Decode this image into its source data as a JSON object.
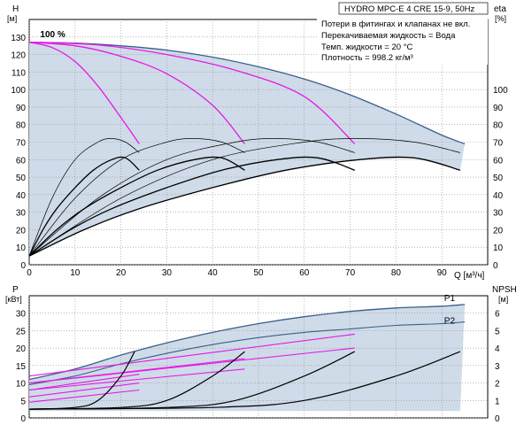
{
  "header": {
    "title": "HYDRO MPC-E 4 CRE 15-9, 50Hz"
  },
  "info_lines": [
    "Потери в фитингах и клапанах не вкл.",
    "Перекачиваемая жидкость = Вода",
    "Темп. жидкости = 20 °C",
    "Плотность = 998.2 кг/м³"
  ],
  "colors": {
    "envelope": "#3a5f8a",
    "curve": "#000000",
    "magenta": "#e619e6",
    "shade": "#cfdbe8",
    "grid": "#8f8f8f"
  },
  "chart_data": [
    {
      "type": "line",
      "name": "head",
      "ylabel_top": "H",
      "ylabel_unit": "[м]",
      "ylabel_right_top": "eta",
      "ylabel_right_unit": "[%]",
      "xlabel": "Q [м³/ч]",
      "xlim": [
        0,
        100
      ],
      "ylim": [
        0,
        140
      ],
      "eta_lim": [
        0,
        140
      ],
      "x_ticks": [
        "0",
        "10",
        "20",
        "30",
        "40",
        "50",
        "60",
        "70",
        "80",
        "90"
      ],
      "y_ticks": [
        "0",
        "10",
        "20",
        "30",
        "40",
        "50",
        "60",
        "70",
        "80",
        "90",
        "100",
        "110",
        "120",
        "130"
      ],
      "eta_ticks": [
        "0",
        "10",
        "20",
        "30",
        "40",
        "50",
        "60",
        "70",
        "80",
        "90",
        "100"
      ],
      "annotation": "100 %",
      "envelope": {
        "x": [
          0,
          10,
          20,
          30,
          40,
          50,
          60,
          70,
          80,
          90,
          95
        ],
        "y": [
          127,
          126.5,
          125,
          122.5,
          118.5,
          113,
          106,
          97,
          86,
          74,
          69
        ]
      },
      "speed_curves": [
        {
          "x": [
            0,
            5,
            10,
            15,
            20,
            24
          ],
          "y": [
            127,
            124,
            116,
            102,
            84,
            69
          ]
        },
        {
          "x": [
            0,
            10,
            20,
            30,
            40,
            47
          ],
          "y": [
            127,
            125,
            119,
            109,
            91,
            69
          ]
        },
        {
          "x": [
            0,
            15,
            30,
            45,
            60,
            71
          ],
          "y": [
            127,
            125.5,
            120,
            111,
            96,
            69
          ]
        }
      ],
      "eta_curves": [
        {
          "x": [
            0,
            5,
            10,
            15,
            18,
            21,
            24
          ],
          "y": [
            5,
            38,
            60,
            70,
            72,
            70,
            64
          ]
        },
        {
          "x": [
            0,
            10,
            20,
            30,
            36,
            42,
            47
          ],
          "y": [
            5,
            38,
            60,
            70,
            72,
            70,
            64
          ]
        },
        {
          "x": [
            0,
            15,
            30,
            45,
            54,
            63,
            71
          ],
          "y": [
            5,
            38,
            60,
            70,
            72,
            70,
            64
          ]
        },
        {
          "x": [
            0,
            20,
            40,
            60,
            72,
            84,
            94
          ],
          "y": [
            5,
            38,
            60,
            70,
            72,
            70,
            64
          ]
        }
      ],
      "system_curves": [
        {
          "x": [
            0,
            3,
            6,
            10,
            14,
            18,
            21,
            24
          ],
          "y": [
            5,
            20,
            32,
            44,
            54,
            60,
            61,
            54
          ]
        },
        {
          "x": [
            0,
            6,
            12,
            20,
            28,
            36,
            42,
            47
          ],
          "y": [
            5,
            20,
            32,
            44,
            54,
            60,
            61,
            54
          ]
        },
        {
          "x": [
            0,
            9,
            18,
            30,
            42,
            54,
            63,
            71
          ],
          "y": [
            5,
            20,
            32,
            44,
            54,
            60,
            61,
            54
          ]
        },
        {
          "x": [
            0,
            12,
            24,
            40,
            56,
            72,
            84,
            94
          ],
          "y": [
            5,
            20,
            32,
            44,
            54,
            60,
            61,
            54
          ]
        }
      ]
    },
    {
      "type": "line",
      "name": "power",
      "ylabel_top": "P",
      "ylabel_unit": "[кВт]",
      "ylabel_right_top": "NPSH",
      "ylabel_right_unit": "[м]",
      "xlim": [
        0,
        100
      ],
      "ylim": [
        0,
        35
      ],
      "npsh_lim": [
        0,
        7
      ],
      "y_ticks": [
        "0",
        "5",
        "10",
        "15",
        "20",
        "25",
        "30"
      ],
      "npsh_ticks": [
        "0",
        "1",
        "2",
        "3",
        "4",
        "5",
        "6"
      ],
      "series_labels": [
        "P1",
        "P2"
      ],
      "p1": {
        "x": [
          0,
          10,
          20,
          30,
          40,
          50,
          60,
          70,
          80,
          90,
          95
        ],
        "y": [
          11,
          14,
          18,
          21.5,
          24.5,
          27,
          29,
          30.5,
          31.5,
          32,
          32.5
        ]
      },
      "p2": {
        "x": [
          0,
          10,
          20,
          30,
          40,
          50,
          60,
          70,
          80,
          90,
          95
        ],
        "y": [
          9.5,
          12,
          15.5,
          18.5,
          21,
          23,
          24.5,
          25.5,
          26.5,
          27,
          27.5
        ]
      },
      "magenta_curves": [
        {
          "x": [
            0,
            24
          ],
          "y": [
            8,
            12.5
          ]
        },
        {
          "x": [
            0,
            24
          ],
          "y": [
            6,
            10
          ]
        },
        {
          "x": [
            0,
            24
          ],
          "y": [
            4.5,
            8
          ]
        },
        {
          "x": [
            0,
            47
          ],
          "y": [
            10,
            17
          ]
        },
        {
          "x": [
            0,
            47
          ],
          "y": [
            8,
            14
          ]
        },
        {
          "x": [
            0,
            71
          ],
          "y": [
            12,
            24
          ]
        },
        {
          "x": [
            0,
            71
          ],
          "y": [
            10,
            20
          ]
        }
      ],
      "npsh_curves": [
        {
          "x": [
            0,
            10,
            15,
            20,
            23
          ],
          "y": [
            0.5,
            0.6,
            1.0,
            2.4,
            3.8
          ]
        },
        {
          "x": [
            0,
            20,
            30,
            40,
            47
          ],
          "y": [
            0.5,
            0.6,
            1.0,
            2.4,
            3.8
          ]
        },
        {
          "x": [
            0,
            30,
            45,
            60,
            71
          ],
          "y": [
            0.5,
            0.6,
            1.0,
            2.4,
            3.8
          ]
        },
        {
          "x": [
            0,
            40,
            60,
            80,
            94
          ],
          "y": [
            0.5,
            0.6,
            1.0,
            2.4,
            3.8
          ]
        }
      ]
    }
  ]
}
